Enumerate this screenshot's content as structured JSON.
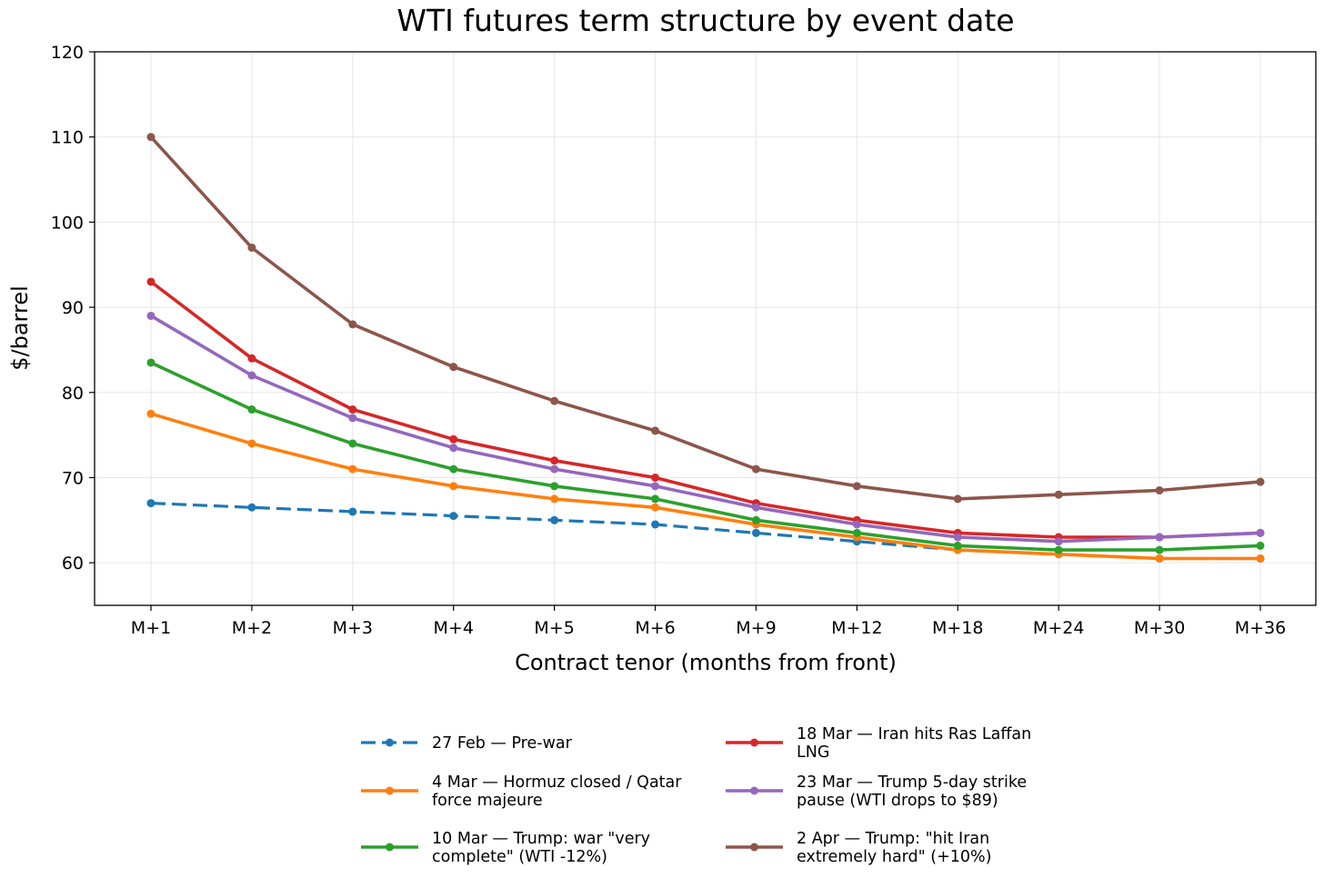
{
  "chart_data": {
    "type": "line",
    "title": "WTI futures term structure by event date",
    "xlabel": "Contract tenor (months from front)",
    "ylabel": "$/barrel",
    "ylim": [
      55,
      120
    ],
    "yticks": [
      60,
      70,
      80,
      90,
      100,
      110,
      120
    ],
    "categories": [
      "M+1",
      "M+2",
      "M+3",
      "M+4",
      "M+5",
      "M+6",
      "M+9",
      "M+12",
      "M+18",
      "M+24",
      "M+30",
      "M+36"
    ],
    "grid": true,
    "legend_position": "bottom-center",
    "series": [
      {
        "name": "27 Feb — Pre-war",
        "legend_lines": [
          "27 Feb — Pre-war"
        ],
        "color": "#1f77b4",
        "dashed": true,
        "values": [
          67,
          66.5,
          66,
          65.5,
          65,
          64.5,
          63.5,
          62.5,
          61.5,
          61,
          60.5,
          60.5
        ]
      },
      {
        "name": "4 Mar — Hormuz closed / Qatar force majeure",
        "legend_lines": [
          "4 Mar — Hormuz closed / Qatar",
          "force majeure"
        ],
        "color": "#ff7f0e",
        "dashed": false,
        "values": [
          77.5,
          74,
          71,
          69,
          67.5,
          66.5,
          64.5,
          63,
          61.5,
          61,
          60.5,
          60.5
        ]
      },
      {
        "name": "10 Mar — Trump: war \"very complete\" (WTI -12%)",
        "legend_lines": [
          "10 Mar — Trump: war \"very",
          "complete\" (WTI -12%)"
        ],
        "color": "#2ca02c",
        "dashed": false,
        "values": [
          83.5,
          78,
          74,
          71,
          69,
          67.5,
          65,
          63.5,
          62,
          61.5,
          61.5,
          62
        ]
      },
      {
        "name": "18 Mar — Iran hits Ras Laffan LNG",
        "legend_lines": [
          "18 Mar — Iran hits Ras Laffan",
          "LNG"
        ],
        "color": "#d62728",
        "dashed": false,
        "values": [
          93,
          84,
          78,
          74.5,
          72,
          70,
          67,
          65,
          63.5,
          63,
          63,
          63.5
        ]
      },
      {
        "name": "23 Mar — Trump 5-day strike pause (WTI drops to $89)",
        "legend_lines": [
          "23 Mar — Trump 5-day strike",
          "pause (WTI drops to $89)"
        ],
        "color": "#9467bd",
        "dashed": false,
        "values": [
          89,
          82,
          77,
          73.5,
          71,
          69,
          66.5,
          64.5,
          63,
          62.5,
          63,
          63.5
        ]
      },
      {
        "name": "2 Apr — Trump: \"hit Iran extremely hard\" (+10%)",
        "legend_lines": [
          "2 Apr — Trump: \"hit Iran",
          "extremely hard\" (+10%)"
        ],
        "color": "#8c564b",
        "dashed": false,
        "values": [
          110,
          97,
          88,
          83,
          79,
          75.5,
          71,
          69,
          67.5,
          68,
          68.5,
          69.5
        ]
      }
    ]
  }
}
